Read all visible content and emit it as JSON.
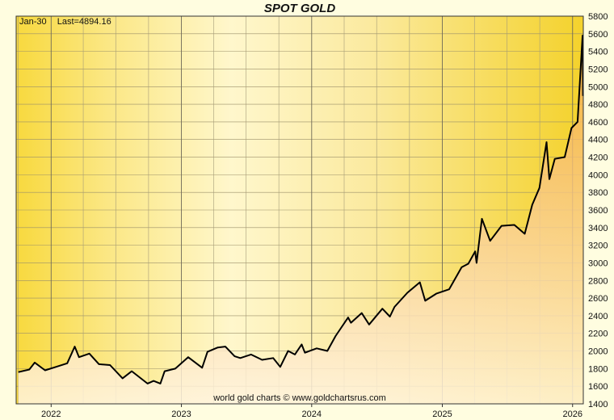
{
  "chart_data": {
    "type": "line",
    "title": "SPOT GOLD",
    "last_date": "Jan-30",
    "last_value_label": "Last=4894.16",
    "watermark": "world gold charts © www.goldchartsrus.com",
    "ylim": [
      1400,
      5800
    ],
    "y_ticks": [
      1400,
      1600,
      1800,
      2000,
      2200,
      2400,
      2600,
      2800,
      3000,
      3200,
      3400,
      3600,
      3800,
      4000,
      4200,
      4400,
      4600,
      4800,
      5000,
      5200,
      5400,
      5600,
      5800
    ],
    "xlim": [
      "2021-09-25",
      "2026-01-31"
    ],
    "x_tick_labels": [
      "2022",
      "2023",
      "2024",
      "2025",
      "2026"
    ],
    "grid": true,
    "series": [
      {
        "color": "#000000",
        "x": [
          "2021-10-01",
          "2021-11-01",
          "2021-11-16",
          "2021-12-15",
          "2022-01-15",
          "2022-02-15",
          "2022-03-08",
          "2022-03-20",
          "2022-04-18",
          "2022-05-15",
          "2022-06-15",
          "2022-07-20",
          "2022-08-15",
          "2022-09-28",
          "2022-10-15",
          "2022-11-03",
          "2022-11-15",
          "2022-12-15",
          "2023-01-20",
          "2023-02-28",
          "2023-03-15",
          "2023-04-13",
          "2023-05-04",
          "2023-05-30",
          "2023-06-15",
          "2023-07-15",
          "2023-08-15",
          "2023-09-15",
          "2023-10-05",
          "2023-10-27",
          "2023-11-15",
          "2023-12-04",
          "2023-12-13",
          "2024-01-15",
          "2024-02-14",
          "2024-03-08",
          "2024-04-12",
          "2024-04-20",
          "2024-05-20",
          "2024-06-10",
          "2024-07-17",
          "2024-08-07",
          "2024-08-20",
          "2024-09-25",
          "2024-10-30",
          "2024-11-14",
          "2024-12-15",
          "2025-01-20",
          "2025-02-24",
          "2025-03-15",
          "2025-04-03",
          "2025-04-07",
          "2025-04-22",
          "2025-05-15",
          "2025-06-16",
          "2025-07-22",
          "2025-08-20",
          "2025-09-10",
          "2025-09-30",
          "2025-10-20",
          "2025-10-28",
          "2025-11-12",
          "2025-12-10",
          "2025-12-29",
          "2026-01-15",
          "2026-01-29",
          "2026-01-30"
        ],
        "values": [
          1760,
          1790,
          1868,
          1780,
          1820,
          1860,
          2050,
          1930,
          1970,
          1850,
          1840,
          1690,
          1770,
          1630,
          1660,
          1630,
          1770,
          1800,
          1930,
          1810,
          1990,
          2040,
          2050,
          1940,
          1920,
          1960,
          1900,
          1920,
          1820,
          2000,
          1960,
          2075,
          1980,
          2030,
          2000,
          2170,
          2380,
          2320,
          2430,
          2300,
          2480,
          2390,
          2500,
          2660,
          2780,
          2570,
          2650,
          2700,
          2950,
          2990,
          3130,
          3000,
          3500,
          3250,
          3420,
          3430,
          3330,
          3660,
          3850,
          4370,
          3950,
          4180,
          4200,
          4530,
          4600,
          5580,
          4894
        ]
      }
    ]
  }
}
